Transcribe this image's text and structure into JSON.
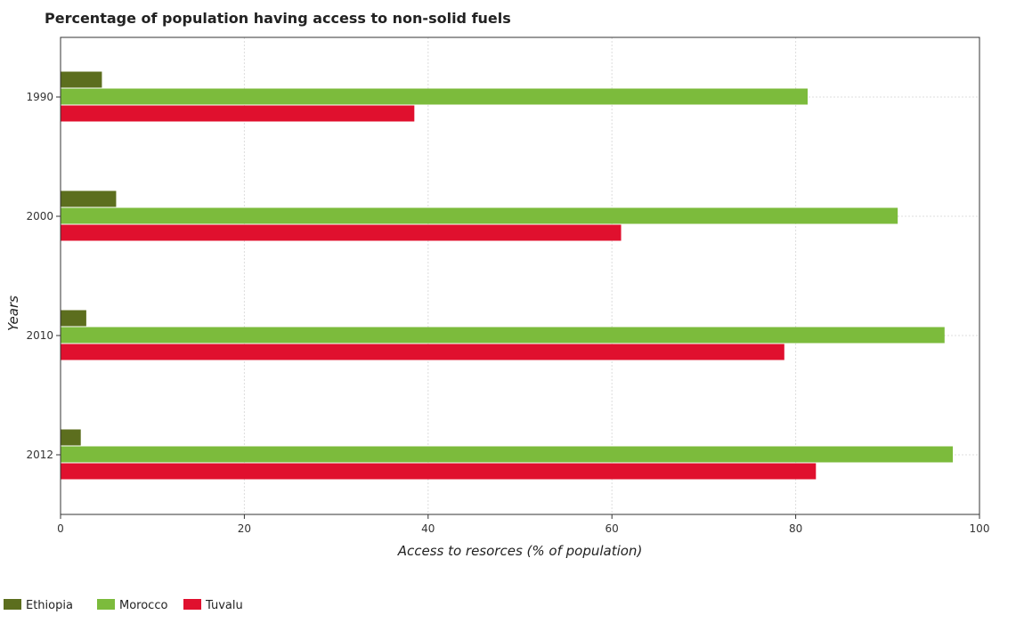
{
  "chart_data": {
    "type": "bar",
    "orientation": "horizontal",
    "title": "Percentage of population having access to non-solid fuels",
    "xlabel": "Access to resorces (% of population)",
    "ylabel": "Years",
    "categories": [
      "1990",
      "2000",
      "2010",
      "2012"
    ],
    "xlim": [
      0,
      100
    ],
    "xticks": [
      0,
      20,
      40,
      60,
      80,
      100
    ],
    "grid": true,
    "legend_position": "bottom-left",
    "series": [
      {
        "name": "Ethiopia",
        "color": "#5c6e1e",
        "values": [
          4.5,
          6.05,
          2.8,
          2.2
        ]
      },
      {
        "name": "Morocco",
        "color": "#7cbb3c",
        "values": [
          81.3,
          91.1,
          96.2,
          97.1
        ]
      },
      {
        "name": "Tuvalu",
        "color": "#e0102e",
        "values": [
          38.5,
          61.0,
          78.76,
          82.2
        ]
      }
    ]
  }
}
